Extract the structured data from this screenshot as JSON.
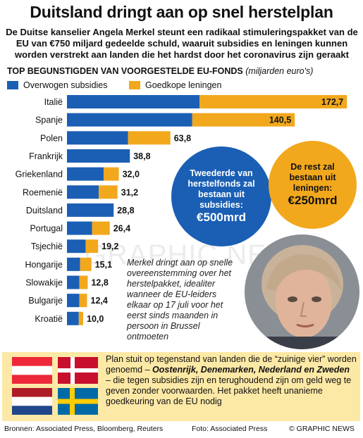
{
  "title": "Duitsland dringt aan op snel herstelplan",
  "subtitle": "De Duitse kanselier Angela Merkel steunt een radikaal stimuleringspakket van de EU van €750 miljard gedeelde schuld, waaruit subsidies en leningen kunnen worden verstrekt aan landen die het hardst door het coronavirus zijn geraakt",
  "chart_data": {
    "type": "bar",
    "orientation": "horizontal",
    "stacked": true,
    "title": "TOP BEGUNSTIGDEN VAN VOORGESTELDE EU-FONDS",
    "unit": "(miljarden euro's)",
    "categories": [
      "Italië",
      "Spanje",
      "Polen",
      "Frankrijk",
      "Griekenland",
      "Roemenië",
      "Duitsland",
      "Portugal",
      "Tsjechië",
      "Hongarije",
      "Slowakije",
      "Bulgarije",
      "Kroatië"
    ],
    "totals": [
      "172,7",
      "140,5",
      "63,8",
      "38,8",
      "32,0",
      "31,2",
      "28,8",
      "26,4",
      "19,2",
      "15,1",
      "12,8",
      "12,4",
      "10,0"
    ],
    "series": [
      {
        "name": "Overwogen subsidies",
        "color": "#1a5fb4",
        "values": [
          81.8,
          77.3,
          37.7,
          38.8,
          22.6,
          19.6,
          28.8,
          15.5,
          11.5,
          8.1,
          7.6,
          7.6,
          7.3
        ]
      },
      {
        "name": "Goedkope leningen",
        "color": "#f2a81d",
        "values": [
          90.9,
          63.2,
          26.1,
          0.0,
          9.4,
          11.6,
          0.0,
          10.9,
          7.7,
          7.0,
          5.2,
          4.8,
          2.7
        ]
      }
    ],
    "legend_position": "top-left",
    "grid": false
  },
  "circle_subsidies": {
    "text": "Tweederde van herstelfonds zal bestaan uit subsidies:",
    "amount": "€500mrd"
  },
  "circle_loans": {
    "text": "De rest zal bestaan uit leningen:",
    "amount": "€250mrd"
  },
  "merkel_note": "Merkel dringt aan op snelle overeenstemming over het herstelpakket, idealiter wanneer de EU-leiders elkaar op 17 juli voor het eerst sinds maanden in persoon in Brussel ontmoeten",
  "frugal": {
    "text_before": "Plan stuit op tegenstand van landen die de “zuinige vier” worden genoemd – ",
    "countries": "Oostenrijk, Denemarken, Nederland en Zweden",
    "text_after": " – die tegen subsidies zijn en terughoudend zijn om geld weg te geven zonder voorwaarden. Het pakket heeft unanieme goedkeuring van de EU nodig"
  },
  "watermark": "GRAPHIC NEWS",
  "footer": {
    "sources": "Bronnen: Associated Press, Bloomberg, Reuters",
    "photo": "Foto: Associated Press",
    "credit": "© GRAPHIC NEWS"
  }
}
